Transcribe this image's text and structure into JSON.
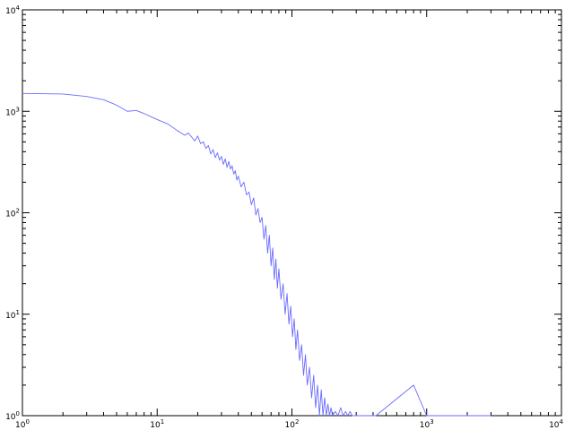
{
  "chart_data": {
    "type": "line",
    "title": "",
    "xlabel": "",
    "ylabel": "",
    "xscale": "log",
    "yscale": "log",
    "xlim": [
      1,
      10000
    ],
    "ylim": [
      1,
      10000
    ],
    "grid": false,
    "legend": "none",
    "line_color": "#6b6bff",
    "x_ticks": [
      {
        "base": "10",
        "exp": "0"
      },
      {
        "base": "10",
        "exp": "1"
      },
      {
        "base": "10",
        "exp": "2"
      },
      {
        "base": "10",
        "exp": "3"
      },
      {
        "base": "10",
        "exp": "4"
      }
    ],
    "y_ticks": [
      {
        "base": "10",
        "exp": "0"
      },
      {
        "base": "10",
        "exp": "1"
      },
      {
        "base": "10",
        "exp": "2"
      },
      {
        "base": "10",
        "exp": "3"
      },
      {
        "base": "10",
        "exp": "4"
      }
    ],
    "series": [
      {
        "x": [
          1,
          2,
          3,
          4,
          5,
          6,
          7,
          8,
          10,
          12,
          14,
          16,
          17,
          18,
          19,
          20,
          21,
          22,
          23,
          24,
          25,
          26,
          27,
          28,
          29,
          30,
          31,
          32,
          33,
          34,
          35,
          36,
          37,
          38,
          39,
          40,
          42,
          44,
          46,
          48,
          50,
          52,
          54,
          56,
          58,
          60,
          62,
          64,
          66,
          68,
          70,
          72,
          74,
          76,
          78,
          80,
          83,
          86,
          89,
          92,
          95,
          98,
          101,
          104,
          107,
          110,
          114,
          118,
          122,
          126,
          130,
          135,
          140,
          145,
          150,
          155,
          160,
          165,
          170,
          175,
          180,
          185,
          190,
          195,
          200,
          210,
          220,
          230,
          240,
          250,
          260,
          270,
          280,
          290,
          300,
          320,
          340,
          360,
          380,
          400,
          420,
          800,
          1000,
          2000,
          3000
        ],
        "y": [
          1500,
          1480,
          1400,
          1300,
          1150,
          1000,
          1020,
          950,
          830,
          750,
          650,
          580,
          610,
          560,
          510,
          570,
          480,
          500,
          430,
          460,
          380,
          420,
          350,
          390,
          330,
          360,
          300,
          340,
          280,
          320,
          270,
          290,
          240,
          260,
          210,
          230,
          180,
          200,
          150,
          160,
          120,
          140,
          95,
          110,
          80,
          90,
          55,
          75,
          40,
          60,
          30,
          45,
          22,
          35,
          18,
          28,
          14,
          20,
          10,
          16,
          8,
          12,
          6,
          9,
          4.5,
          7,
          3.5,
          5,
          2.5,
          4,
          2,
          3,
          1.5,
          2.5,
          1.2,
          2,
          1,
          1.8,
          1,
          1.5,
          1,
          1.3,
          1,
          1.2,
          1,
          1.1,
          1,
          1.2,
          1,
          1.1,
          1,
          1.1,
          1,
          1,
          1,
          1,
          1,
          1,
          1,
          1,
          1,
          2,
          1,
          1,
          1
        ]
      }
    ]
  }
}
